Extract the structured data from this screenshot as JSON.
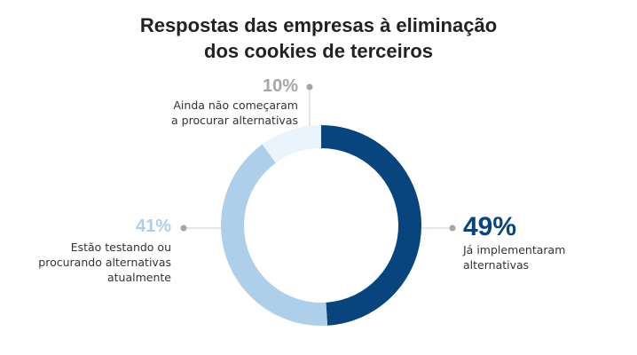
{
  "chart_data": {
    "type": "pie",
    "variant": "donut",
    "title": "Respostas das empresas à eliminação dos cookies de terceiros",
    "title_lines": [
      "Respostas das empresas à eliminação",
      "dos cookies de terceiros"
    ],
    "slices": [
      {
        "label": "Já implementaram alternativas",
        "label_lines": [
          "Já implementaram",
          "alternativas"
        ],
        "value": 49,
        "value_label": "49%",
        "color": "#08457e",
        "label_color": "#08457e"
      },
      {
        "label": "Estão testando ou procurando alternativas atualmente",
        "label_lines": [
          "Estão testando ou",
          "procurando alternativas",
          "atualmente"
        ],
        "value": 41,
        "value_label": "41%",
        "color": "#aecfea",
        "label_color": "#aecfea"
      },
      {
        "label": "Ainda não começaram a procurar alternativas",
        "label_lines": [
          "Ainda não começaram",
          "a procurar alternativas"
        ],
        "value": 10,
        "value_label": "10%",
        "color": "#eaf4fc",
        "label_color": "#a6a6a6"
      }
    ],
    "start": "top",
    "direction": "clockwise",
    "legend": "none"
  }
}
